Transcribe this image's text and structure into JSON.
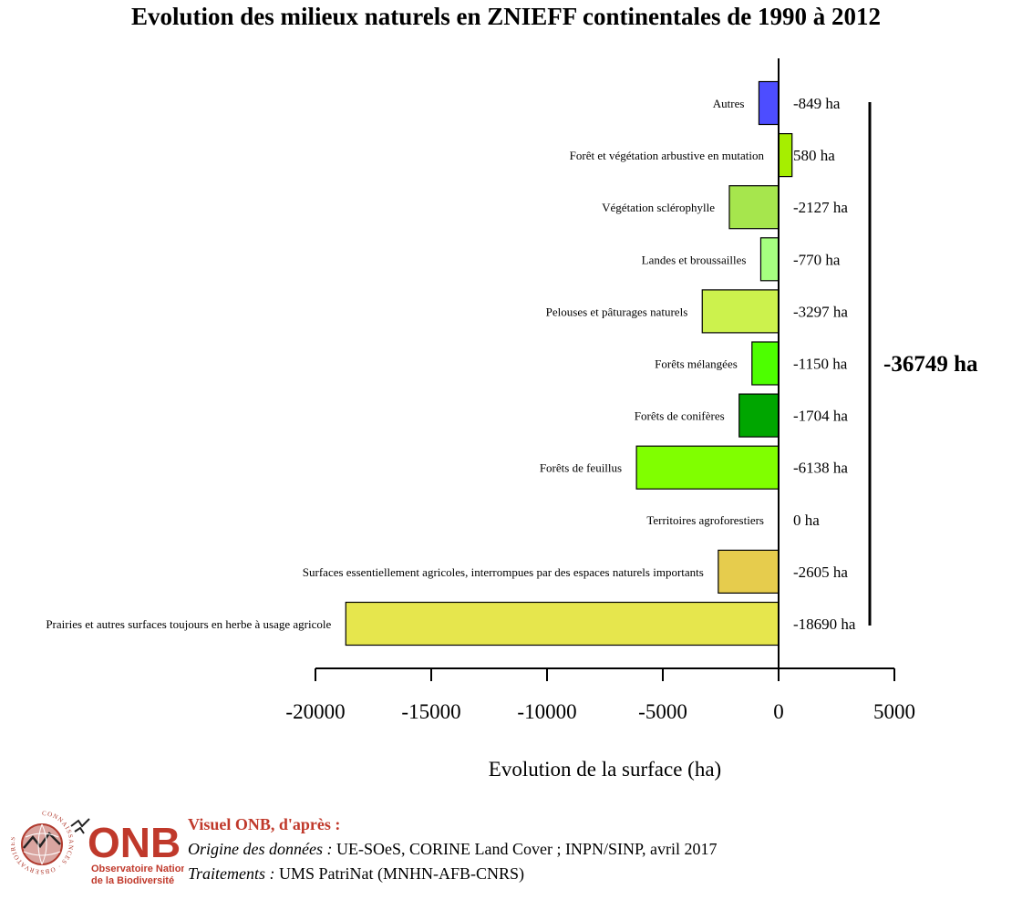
{
  "chart_data": {
    "type": "bar",
    "orientation": "horizontal",
    "title": "Evolution des milieux naturels en ZNIEFF continentales de 1990 à 2012",
    "xlabel": "Evolution de la surface (ha)",
    "xlim": [
      -20000,
      5000
    ],
    "xticks": [
      "-20000",
      "-15000",
      "-10000",
      "-5000",
      "0",
      "5000"
    ],
    "categories": [
      "Autres",
      "Forêt et végétation arbustive en mutation",
      "Végétation sclérophylle",
      "Landes et broussailles",
      "Pelouses et pâturages naturels",
      "Forêts mélangées",
      "Forêts de conifères",
      "Forêts de feuillus",
      "Territoires agroforestiers",
      "Surfaces essentiellement agricoles, interrompues par des espaces naturels importants",
      "Prairies et autres surfaces toujours en herbe à usage agricole"
    ],
    "values": [
      -849,
      580,
      -2127,
      -770,
      -3297,
      -1150,
      -1704,
      -6138,
      0,
      -2605,
      -18690
    ],
    "value_labels": [
      "-849 ha",
      "580 ha",
      "-2127 ha",
      "-770 ha",
      "-3297 ha",
      "-1150 ha",
      "-1704 ha",
      "-6138 ha",
      "0 ha",
      "-2605 ha",
      "-18690 ha"
    ],
    "colors": [
      "#4d4dff",
      "#a6ee00",
      "#a6e64d",
      "#a6ff80",
      "#ccf24d",
      "#4dff00",
      "#00a600",
      "#80ff00",
      "#ffe6a6",
      "#e6cc4d",
      "#e6e64d"
    ],
    "total_label": "-36749 ha",
    "grid": false
  },
  "footer": {
    "logo_text": "ONB",
    "logo_subtitle_1": "Observatoire National",
    "logo_subtitle_2": "de la Biodiversité",
    "logo_ring_text": "CONNAISSANCES · OBSERVATOIRES",
    "heading": "Visuel ONB, d'après :",
    "line1_label": "Origine des données :",
    "line1_text": " UE-SOeS, CORINE Land Cover ; INPN/SINP, avril 2017",
    "line2_label": "Traitements :",
    "line2_text": " UMS PatriNat (MNHN-AFB-CNRS)",
    "brand_color": "#c0392b"
  }
}
